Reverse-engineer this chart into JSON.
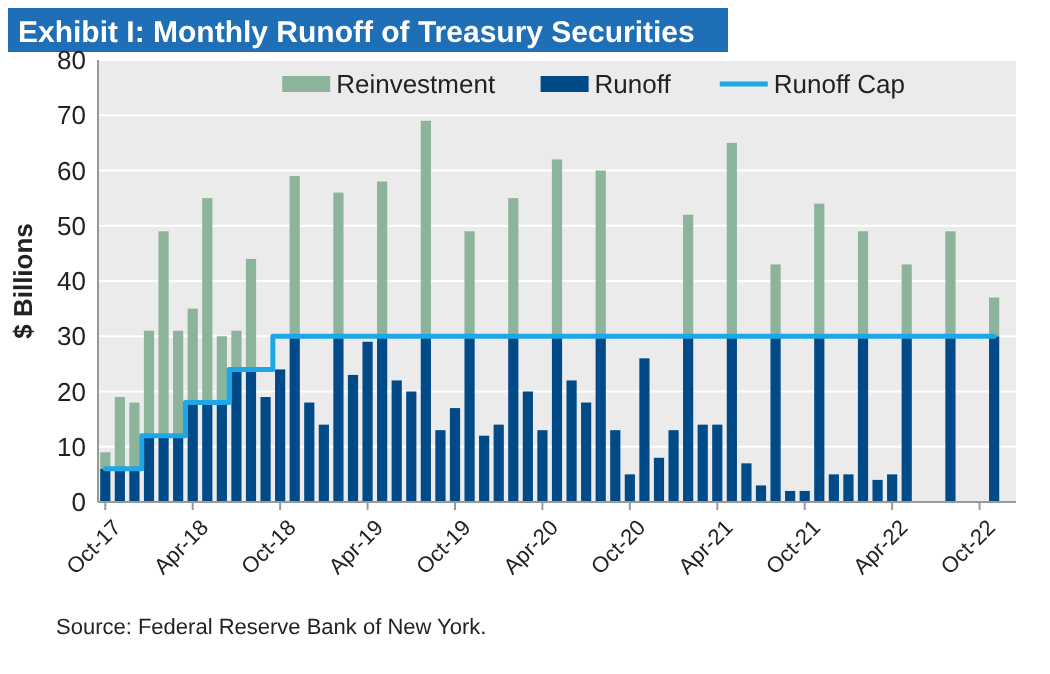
{
  "chart_data": {
    "type": "bar",
    "title": "Exhibit I: Monthly Runoff of Treasury Securities",
    "ylabel": "$ Billions",
    "annotations": [
      "Source: Federal Reserve Bank of New York."
    ],
    "categories": [
      "Oct-17",
      null,
      null,
      null,
      null,
      null,
      "Apr-18",
      null,
      null,
      null,
      null,
      null,
      "Oct-18",
      null,
      null,
      null,
      null,
      null,
      "Apr-19",
      null,
      null,
      null,
      null,
      null,
      "Oct-19",
      null,
      null,
      null,
      null,
      null,
      "Apr-20",
      null,
      null,
      null,
      null,
      null,
      "Oct-20",
      null,
      null,
      null,
      null,
      null,
      "Apr-21",
      null,
      null,
      null,
      null,
      null,
      "Oct-21",
      null,
      null,
      null,
      null,
      null,
      "Apr-22",
      null,
      null,
      null,
      null,
      null,
      "Oct-22",
      null,
      null
    ],
    "stacked": true,
    "ylim": [
      0,
      80
    ],
    "yticks": [
      0,
      10,
      20,
      30,
      40,
      50,
      60,
      70,
      80
    ],
    "grid": "y",
    "legend": "top",
    "series": [
      {
        "name": "Runoff",
        "color": "#004a87",
        "values": [
          6,
          6,
          6,
          12,
          12,
          12,
          18,
          18,
          18,
          24,
          24,
          19,
          24,
          30,
          18,
          14,
          30,
          23,
          29,
          30,
          22,
          20,
          30,
          13,
          17,
          30,
          12,
          14,
          30,
          20,
          13,
          30,
          22,
          18,
          30,
          13,
          5,
          26,
          8,
          13,
          30,
          14,
          14,
          30,
          7,
          3,
          30,
          2,
          2,
          30,
          5,
          5,
          30,
          4,
          5,
          30,
          null,
          null,
          30,
          null,
          null,
          30,
          null
        ]
      },
      {
        "name": "Reinvestment",
        "color": "#8cb49b",
        "values": [
          3,
          13,
          12,
          19,
          37,
          19,
          17,
          37,
          12,
          7,
          20,
          null,
          null,
          29,
          null,
          null,
          26,
          null,
          null,
          28,
          null,
          null,
          39,
          null,
          null,
          19,
          null,
          null,
          25,
          null,
          null,
          32,
          null,
          null,
          30,
          null,
          null,
          null,
          null,
          null,
          22,
          null,
          null,
          35,
          null,
          null,
          13,
          null,
          null,
          24,
          null,
          null,
          19,
          null,
          null,
          13,
          null,
          null,
          19,
          null,
          null,
          7,
          null
        ]
      },
      {
        "name": "Runoff Cap",
        "type": "step",
        "color": "#1ea7e6",
        "values": [
          6,
          6,
          6,
          12,
          12,
          12,
          18,
          18,
          18,
          24,
          24,
          24,
          30,
          30,
          30,
          30,
          30,
          30,
          30,
          30,
          30,
          30,
          30,
          30,
          30,
          30,
          30,
          30,
          30,
          30,
          30,
          30,
          30,
          30,
          30,
          30,
          30,
          30,
          30,
          30,
          30,
          30,
          30,
          30,
          30,
          30,
          30,
          30,
          30,
          30,
          30,
          30,
          30,
          30,
          30,
          30,
          30,
          30,
          30,
          30,
          30,
          30,
          null
        ]
      }
    ]
  }
}
